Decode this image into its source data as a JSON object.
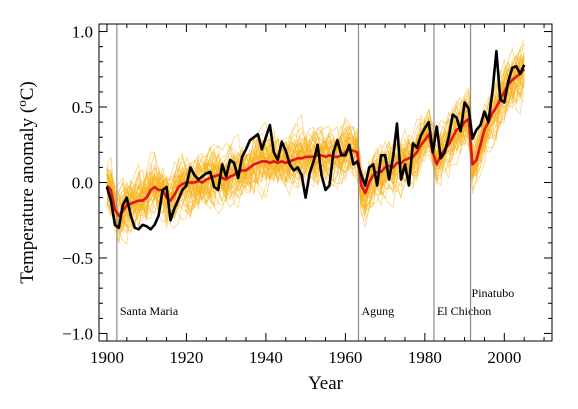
{
  "chart_data": {
    "type": "line",
    "title": "",
    "xlabel": "Year",
    "ylabel": "Temperature anomaly (°C)",
    "ylabel_parts": {
      "pre": "Temperature anomaly (",
      "sup": "o",
      "post": "C)"
    },
    "xlim": [
      1898,
      2012
    ],
    "ylim": [
      -1.05,
      1.05
    ],
    "xticks": [
      1900,
      1920,
      1940,
      1960,
      1980,
      2000
    ],
    "xtick_labels": [
      "1900",
      "1920",
      "1940",
      "1960",
      "1980",
      "2000"
    ],
    "yticks": [
      -1.0,
      -0.5,
      0.0,
      0.5,
      1.0
    ],
    "ytick_labels": [
      "−1.0",
      "−0.5",
      "0.0",
      "0.5",
      "1.0"
    ],
    "grid": false,
    "legend": "none",
    "colors": {
      "observed": "#000000",
      "mean": "#e0141e",
      "ensemble": "#f7b21c",
      "volcano_line": "#8c8c8c"
    },
    "volcanoes": [
      {
        "name": "Santa Maria",
        "year": 1902.5
      },
      {
        "name": "Agung",
        "year": 1963.3
      },
      {
        "name": "El Chichon",
        "year": 1982.3
      },
      {
        "name": "Pinatubo",
        "year": 1991.5
      }
    ],
    "series": [
      {
        "role": "observed",
        "x": [
          1900,
          1901,
          1902,
          1903,
          1904,
          1905,
          1906,
          1907,
          1908,
          1909,
          1910,
          1911,
          1912,
          1913,
          1914,
          1915,
          1916,
          1917,
          1918,
          1919,
          1920,
          1921,
          1922,
          1923,
          1924,
          1925,
          1926,
          1927,
          1928,
          1929,
          1930,
          1931,
          1932,
          1933,
          1934,
          1935,
          1936,
          1937,
          1938,
          1939,
          1940,
          1941,
          1942,
          1943,
          1944,
          1945,
          1946,
          1947,
          1948,
          1949,
          1950,
          1951,
          1952,
          1953,
          1954,
          1955,
          1956,
          1957,
          1958,
          1959,
          1960,
          1961,
          1962,
          1963,
          1964,
          1965,
          1966,
          1967,
          1968,
          1969,
          1970,
          1971,
          1972,
          1973,
          1974,
          1975,
          1976,
          1977,
          1978,
          1979,
          1980,
          1981,
          1982,
          1983,
          1984,
          1985,
          1986,
          1987,
          1988,
          1989,
          1990,
          1991,
          1992,
          1993,
          1994,
          1995,
          1996,
          1997,
          1998,
          1999,
          2000,
          2001,
          2002,
          2003,
          2004,
          2005
        ],
        "y": [
          -0.03,
          -0.12,
          -0.28,
          -0.3,
          -0.15,
          -0.1,
          -0.22,
          -0.3,
          -0.31,
          -0.28,
          -0.29,
          -0.31,
          -0.28,
          -0.22,
          -0.05,
          -0.03,
          -0.25,
          -0.17,
          -0.11,
          -0.05,
          -0.02,
          0.1,
          0.05,
          0.02,
          0.04,
          0.06,
          0.07,
          -0.03,
          -0.05,
          0.12,
          0.04,
          0.15,
          0.13,
          0.03,
          0.17,
          0.22,
          0.28,
          0.3,
          0.32,
          0.22,
          0.3,
          0.38,
          0.2,
          0.15,
          0.27,
          0.21,
          0.12,
          0.08,
          0.1,
          0.05,
          -0.1,
          0.06,
          0.14,
          0.25,
          0.05,
          -0.05,
          -0.02,
          0.2,
          0.28,
          0.18,
          0.18,
          0.25,
          0.12,
          0.14,
          0.05,
          -0.02,
          0.1,
          0.12,
          -0.02,
          0.18,
          0.18,
          0.02,
          0.17,
          0.39,
          0.02,
          0.12,
          -0.02,
          0.26,
          0.23,
          0.31,
          0.36,
          0.4,
          0.2,
          0.37,
          0.16,
          0.2,
          0.3,
          0.45,
          0.43,
          0.34,
          0.53,
          0.49,
          0.29,
          0.35,
          0.38,
          0.47,
          0.4,
          0.6,
          0.87,
          0.55,
          0.53,
          0.67,
          0.76,
          0.77,
          0.72,
          0.78
        ]
      },
      {
        "role": "mean",
        "x": [
          1900,
          1901,
          1902,
          1903,
          1904,
          1905,
          1906,
          1907,
          1908,
          1909,
          1910,
          1911,
          1912,
          1913,
          1914,
          1915,
          1916,
          1917,
          1918,
          1919,
          1920,
          1921,
          1922,
          1923,
          1924,
          1925,
          1926,
          1927,
          1928,
          1929,
          1930,
          1931,
          1932,
          1933,
          1934,
          1935,
          1936,
          1937,
          1938,
          1939,
          1940,
          1941,
          1942,
          1943,
          1944,
          1945,
          1946,
          1947,
          1948,
          1949,
          1950,
          1951,
          1952,
          1953,
          1954,
          1955,
          1956,
          1957,
          1958,
          1959,
          1960,
          1961,
          1962,
          1963,
          1964,
          1965,
          1966,
          1967,
          1968,
          1969,
          1970,
          1971,
          1972,
          1973,
          1974,
          1975,
          1976,
          1977,
          1978,
          1979,
          1980,
          1981,
          1982,
          1983,
          1984,
          1985,
          1986,
          1987,
          1988,
          1989,
          1990,
          1991,
          1992,
          1993,
          1994,
          1995,
          1996,
          1997,
          1998,
          1999,
          2000,
          2001,
          2002,
          2003,
          2004,
          2005
        ],
        "y": [
          -0.02,
          -0.05,
          -0.18,
          -0.22,
          -0.19,
          -0.15,
          -0.14,
          -0.13,
          -0.12,
          -0.12,
          -0.1,
          -0.05,
          -0.03,
          -0.05,
          -0.05,
          -0.1,
          -0.12,
          -0.08,
          -0.03,
          -0.01,
          0.0,
          0.0,
          0.0,
          0.01,
          0.0,
          0.02,
          0.03,
          0.04,
          0.05,
          0.03,
          0.02,
          0.04,
          0.05,
          0.07,
          0.08,
          0.08,
          0.1,
          0.12,
          0.13,
          0.14,
          0.14,
          0.13,
          0.14,
          0.13,
          0.14,
          0.13,
          0.14,
          0.15,
          0.16,
          0.16,
          0.17,
          0.17,
          0.17,
          0.18,
          0.18,
          0.17,
          0.18,
          0.17,
          0.17,
          0.18,
          0.2,
          0.22,
          0.21,
          0.2,
          -0.02,
          -0.07,
          0.0,
          0.05,
          0.07,
          0.07,
          0.1,
          0.11,
          0.1,
          0.13,
          0.13,
          0.15,
          0.16,
          0.17,
          0.2,
          0.25,
          0.28,
          0.32,
          0.2,
          0.12,
          0.18,
          0.22,
          0.25,
          0.3,
          0.35,
          0.36,
          0.4,
          0.42,
          0.12,
          0.15,
          0.25,
          0.35,
          0.4,
          0.46,
          0.5,
          0.55,
          0.6,
          0.65,
          0.68,
          0.7,
          0.72,
          0.75
        ]
      }
    ]
  }
}
